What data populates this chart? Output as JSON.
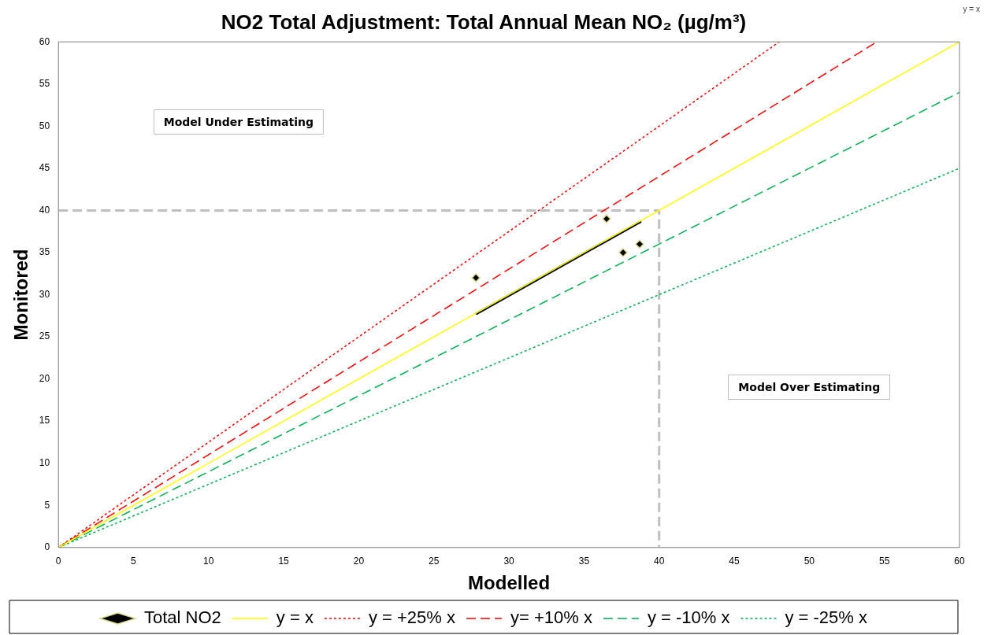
{
  "chart_data": {
    "type": "scatter",
    "title": "NO2 Total Adjustment: Total Annual Mean NO₂ (µg/m³)",
    "xlabel": "Modelled",
    "ylabel": "Monitored",
    "xlim": [
      0,
      60
    ],
    "ylim": [
      0,
      60
    ],
    "xticks": [
      0,
      5,
      10,
      15,
      20,
      25,
      30,
      35,
      40,
      45,
      50,
      55,
      60
    ],
    "yticks": [
      0,
      5,
      10,
      15,
      20,
      25,
      30,
      35,
      40,
      45,
      50,
      55,
      60
    ],
    "grid": false,
    "legend": "bottom",
    "annotations": [
      "Model Under Estimating",
      "Model Over Estimating",
      "y = x"
    ],
    "series": [
      {
        "name": "Total NO2",
        "type": "scatter",
        "marker": "diamond",
        "color": "#000000",
        "x": [
          27.8,
          36.5,
          37.6,
          38.7
        ],
        "values": [
          32,
          39,
          35,
          36
        ]
      },
      {
        "name": "y = x",
        "type": "line",
        "line_style": "solid",
        "color": "#ffff00",
        "x": [
          0,
          60
        ],
        "values": [
          0,
          60
        ]
      },
      {
        "name": "y = +25% x",
        "type": "line",
        "line_style": "dotted",
        "color": "#ff0000",
        "x": [
          0,
          48
        ],
        "values": [
          0,
          60
        ]
      },
      {
        "name": "y= +10% x",
        "type": "line",
        "line_style": "dashed",
        "color": "#ff0000",
        "x": [
          0,
          54.5
        ],
        "values": [
          0,
          60
        ]
      },
      {
        "name": "y = -10% x",
        "type": "line",
        "line_style": "dashed",
        "color": "#00b050",
        "x": [
          0,
          60
        ],
        "values": [
          0,
          54
        ]
      },
      {
        "name": "y = -25% x",
        "type": "line",
        "line_style": "dotted",
        "color": "#00b050",
        "x": [
          0,
          60
        ],
        "values": [
          0,
          45
        ]
      },
      {
        "type": "line",
        "line_style": "solid",
        "color": "#000000",
        "x": [
          27.8,
          38.8
        ],
        "values": [
          27.7,
          38.7
        ]
      },
      {
        "type": "line",
        "line_style": "dashed",
        "color": "#bfbfbf",
        "x": [
          0,
          40,
          40
        ],
        "values": [
          40,
          40,
          0
        ]
      }
    ]
  }
}
